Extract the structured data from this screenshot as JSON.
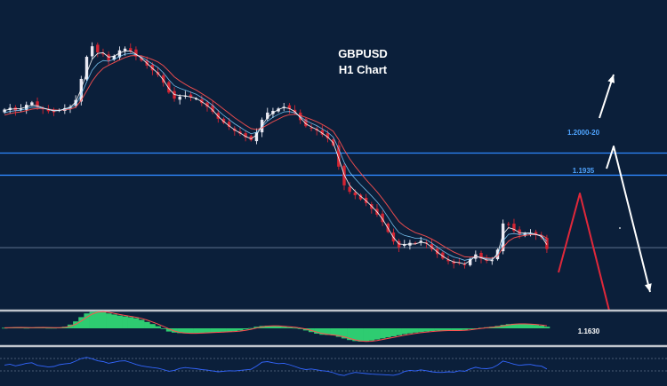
{
  "chart_data": {
    "type": "candlestick",
    "title_line1": "GBPUSD",
    "title_line2": "H1 Chart",
    "background": "#0b1f3a",
    "colors": {
      "bull": "#e8e8f2",
      "bear": "#d42432",
      "ma_fast": "#ffffff",
      "ma_slow": "#ff5050",
      "ma_mid": "#7fd0ff",
      "level_line": "#2f87ff",
      "level_label": "#4fa4ff",
      "osc_up": "#2ecc71",
      "osc_signal": "#ff5050",
      "rsi_line": "#3366ff",
      "panel_border": "#bfc4cc",
      "arrow_white": "#ffffff",
      "arrow_red": "#e0283a"
    },
    "ylim": [
      1.155,
      1.245
    ],
    "levels": [
      {
        "value": 1.2,
        "label": "1.2000-20"
      },
      {
        "value": 1.1935,
        "label": "1.1935"
      },
      {
        "value": 1.1722,
        "label": ""
      },
      {
        "value": 1.163,
        "label": "1.1630"
      }
    ],
    "price_closes": [
      1.2128,
      1.2133,
      1.2124,
      1.213,
      1.2142,
      1.2149,
      1.2136,
      1.2129,
      1.2123,
      1.212,
      1.2127,
      1.2132,
      1.2136,
      1.2156,
      1.2218,
      1.2283,
      1.2314,
      1.2296,
      1.229,
      1.2272,
      1.2286,
      1.2302,
      1.2307,
      1.23,
      1.2284,
      1.2272,
      1.2257,
      1.2243,
      1.223,
      1.2207,
      1.2178,
      1.216,
      1.2166,
      1.2169,
      1.2164,
      1.216,
      1.2147,
      1.2136,
      1.2121,
      1.2101,
      1.2089,
      1.2077,
      1.2065,
      1.2057,
      1.2046,
      1.2038,
      1.2061,
      1.2098,
      1.2119,
      1.2124,
      1.2131,
      1.2136,
      1.213,
      1.2119,
      1.2097,
      1.2079,
      1.2073,
      1.2066,
      1.2054,
      1.2043,
      1.2023,
      1.196,
      1.1905,
      1.1886,
      1.1876,
      1.1864,
      1.1853,
      1.1836,
      1.1819,
      1.1797,
      1.1768,
      1.174,
      1.1723,
      1.1731,
      1.1736,
      1.1734,
      1.1742,
      1.1734,
      1.1717,
      1.1703,
      1.169,
      1.1682,
      1.1675,
      1.1677,
      1.1672,
      1.1688,
      1.1702,
      1.169,
      1.1683,
      1.1685,
      1.1716,
      1.1793,
      1.1791,
      1.1771,
      1.176,
      1.1764,
      1.1765,
      1.1759,
      1.1752,
      1.1718
    ],
    "ma_fast": [
      1.2125,
      1.2129,
      1.213,
      1.2131,
      1.2136,
      1.2141,
      1.2139,
      1.2133,
      1.2128,
      1.2124,
      1.2125,
      1.213,
      1.2135,
      1.215,
      1.2189,
      1.2236,
      1.2276,
      1.2293,
      1.2295,
      1.2282,
      1.2285,
      1.2294,
      1.23,
      1.23,
      1.2291,
      1.2279,
      1.2264,
      1.2249,
      1.2235,
      1.2215,
      1.219,
      1.2172,
      1.2169,
      1.2168,
      1.2165,
      1.2161,
      1.2151,
      1.214,
      1.2126,
      1.2108,
      1.2093,
      1.208,
      1.2068,
      1.2059,
      1.2049,
      1.2042,
      1.2053,
      1.2081,
      1.2105,
      1.2118,
      1.2128,
      1.2134,
      1.2131,
      1.2122,
      1.2104,
      1.2086,
      1.2077,
      1.2069,
      1.2058,
      1.2047,
      1.203,
      1.1985,
      1.1936,
      1.1905,
      1.1888,
      1.1873,
      1.186,
      1.1844,
      1.1827,
      1.1806,
      1.1779,
      1.1752,
      1.1733,
      1.1731,
      1.1733,
      1.1733,
      1.1738,
      1.1735,
      1.1723,
      1.1709,
      1.1697,
      1.1687,
      1.168,
      1.1678,
      1.1674,
      1.1684,
      1.1697,
      1.1692,
      1.1686,
      1.1685,
      1.1705,
      1.1761,
      1.1781,
      1.1776,
      1.1766,
      1.1765,
      1.1765,
      1.1761,
      1.1755,
      1.1731
    ],
    "ma_slow": [
      1.2112,
      1.2116,
      1.2119,
      1.2121,
      1.2125,
      1.2129,
      1.2131,
      1.2131,
      1.2129,
      1.2127,
      1.2126,
      1.2127,
      1.2129,
      1.2135,
      1.2155,
      1.2183,
      1.2211,
      1.2233,
      1.2249,
      1.2258,
      1.2266,
      1.2274,
      1.2281,
      1.2286,
      1.2287,
      1.2286,
      1.2281,
      1.2275,
      1.2268,
      1.2257,
      1.2241,
      1.2224,
      1.2212,
      1.2202,
      1.2193,
      1.2185,
      1.2175,
      1.2165,
      1.2154,
      1.2142,
      1.2129,
      1.2117,
      1.2104,
      1.2093,
      1.2082,
      1.2072,
      1.2069,
      1.2074,
      1.2083,
      1.2092,
      1.21,
      1.2108,
      1.2113,
      1.2114,
      1.2111,
      1.2105,
      1.2099,
      1.2092,
      1.2084,
      1.2075,
      1.2064,
      1.204,
      1.201,
      1.1983,
      1.1961,
      1.1941,
      1.1922,
      1.1904,
      1.1886,
      1.1866,
      1.1844,
      1.1821,
      1.1799,
      1.1785,
      1.1775,
      1.1766,
      1.1761,
      1.1755,
      1.1747,
      1.1738,
      1.1728,
      1.1718,
      1.1709,
      1.1702,
      1.1695,
      1.1694,
      1.1695,
      1.1694,
      1.1692,
      1.1691,
      1.1697,
      1.1722,
      1.1741,
      1.1751,
      1.1755,
      1.1758,
      1.176,
      1.176,
      1.1759,
      1.175
    ],
    "oscillator": {
      "zero_level": 0,
      "values": [
        0.2,
        0.3,
        0.4,
        0.3,
        0.2,
        0.3,
        0.4,
        0.3,
        0.2,
        0.2,
        0.3,
        0.6,
        1.4,
        2.6,
        4.2,
        5.6,
        6.2,
        6.4,
        6.1,
        5.6,
        5.2,
        4.8,
        4.5,
        4.2,
        3.8,
        3.2,
        2.4,
        1.6,
        0.8,
        -0.2,
        -1.2,
        -1.6,
        -1.8,
        -1.9,
        -1.9,
        -1.8,
        -1.7,
        -1.6,
        -1.5,
        -1.4,
        -1.3,
        -1.2,
        -1.1,
        -0.8,
        -0.4,
        0.1,
        0.6,
        0.9,
        1.0,
        0.9,
        0.8,
        0.6,
        0.4,
        0.2,
        -0.2,
        -0.8,
        -1.4,
        -2.0,
        -2.4,
        -2.5,
        -2.6,
        -3.2,
        -3.8,
        -4.4,
        -4.8,
        -5.0,
        -4.9,
        -4.6,
        -4.2,
        -3.8,
        -3.4,
        -3.0,
        -2.6,
        -2.2,
        -1.9,
        -1.6,
        -1.4,
        -1.2,
        -1.0,
        -0.9,
        -0.8,
        -0.8,
        -0.9,
        -0.8,
        -0.6,
        -0.3,
        0.0,
        0.2,
        0.4,
        0.6,
        0.9,
        1.3,
        1.6,
        1.7,
        1.7,
        1.6,
        1.5,
        1.3,
        1.0,
        0.6
      ]
    },
    "rsi": [
      52,
      55,
      49,
      53,
      58,
      60,
      51,
      48,
      45,
      47,
      53,
      56,
      58,
      66,
      75,
      79,
      74,
      67,
      64,
      58,
      62,
      66,
      67,
      61,
      54,
      49,
      46,
      43,
      41,
      36,
      30,
      33,
      40,
      43,
      41,
      39,
      36,
      34,
      31,
      28,
      30,
      32,
      31,
      33,
      35,
      37,
      48,
      62,
      64,
      60,
      57,
      58,
      53,
      47,
      40,
      36,
      38,
      35,
      32,
      30,
      25,
      18,
      15,
      22,
      26,
      24,
      22,
      20,
      19,
      18,
      17,
      16,
      20,
      29,
      33,
      31,
      35,
      32,
      28,
      26,
      26,
      28,
      27,
      32,
      30,
      38,
      44,
      40,
      39,
      42,
      52,
      66,
      61,
      55,
      51,
      53,
      54,
      50,
      48,
      38
    ],
    "arrows": [
      {
        "color": "white",
        "direction": "up"
      },
      {
        "color": "white",
        "direction": "up-then-down"
      },
      {
        "color": "red",
        "direction": "up-then-down"
      }
    ]
  }
}
